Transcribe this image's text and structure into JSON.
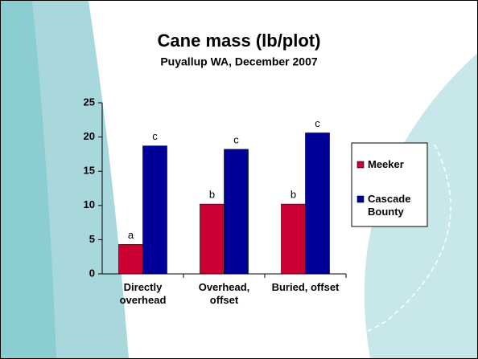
{
  "chart_data": {
    "type": "bar",
    "title": "Cane mass (lb/plot)",
    "subtitle": "Puyallup WA, December 2007",
    "categories": [
      "Directly overhead",
      "Overhead, offset",
      "Buried, offset"
    ],
    "series": [
      {
        "name": "Meeker",
        "color": "#cc0033",
        "values": [
          4.3,
          10.2,
          10.2
        ],
        "letters": [
          "a",
          "b",
          "b"
        ]
      },
      {
        "name": "Cascade Bounty",
        "color": "#000099",
        "values": [
          18.7,
          18.2,
          20.6
        ],
        "letters": [
          "c",
          "c",
          "c"
        ]
      }
    ],
    "ylim": [
      0,
      25
    ],
    "yticks": [
      0,
      5,
      10,
      15,
      20,
      25
    ],
    "grid": false,
    "legend": "right"
  }
}
